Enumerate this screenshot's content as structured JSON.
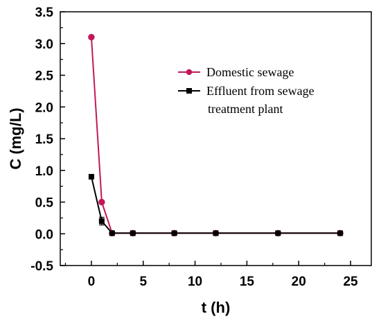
{
  "chart_data": {
    "type": "line",
    "title": "",
    "xlabel": "t (h)",
    "ylabel": "C (mg/L)",
    "xlim": [
      -3,
      27
    ],
    "ylim": [
      -0.5,
      3.5
    ],
    "xticks": [
      0,
      5,
      10,
      15,
      20,
      25
    ],
    "yticks": [
      -0.5,
      0.0,
      0.5,
      1.0,
      1.5,
      2.0,
      2.5,
      3.0,
      3.5
    ],
    "xtick_labels": [
      "0",
      "5",
      "10",
      "15",
      "20",
      "25"
    ],
    "ytick_labels": [
      "-0.5",
      "0.0",
      "0.5",
      "1.0",
      "1.5",
      "2.0",
      "2.5",
      "3.0",
      "3.5"
    ],
    "grid": false,
    "legend_position": "top-right",
    "series": [
      {
        "name": "Domestic sewage",
        "color": "#c2185b",
        "marker": "circle",
        "x": [
          0,
          1,
          2,
          4,
          8,
          12,
          18,
          24
        ],
        "y": [
          3.1,
          0.5,
          0.01,
          0.01,
          0.01,
          0.01,
          0.01,
          0.01
        ]
      },
      {
        "name": "Effluent from sewage treatment plant",
        "legend_lines": [
          "Effluent from sewage",
          "treatment plant"
        ],
        "color": "#000000",
        "marker": "square",
        "x": [
          0,
          1,
          2,
          4,
          8,
          12,
          18,
          24
        ],
        "y": [
          0.9,
          0.2,
          0.01,
          0.01,
          0.01,
          0.01,
          0.01,
          0.01
        ],
        "error": [
          0,
          0.06,
          0,
          0,
          0,
          0,
          0,
          0
        ]
      }
    ]
  }
}
